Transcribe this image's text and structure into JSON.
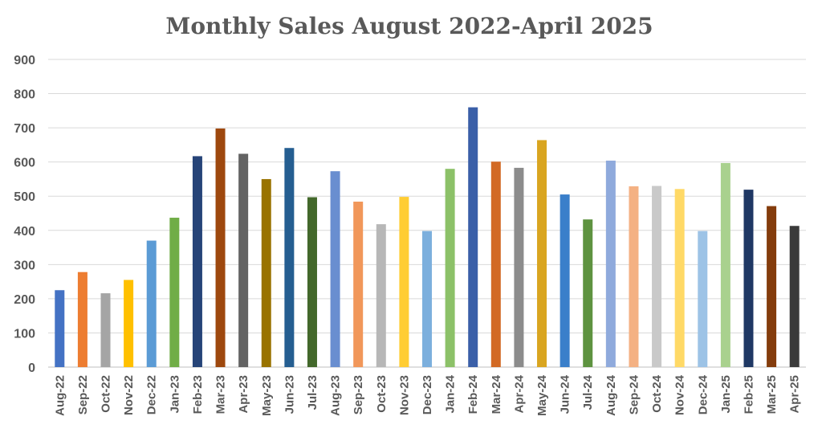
{
  "chart_data": {
    "type": "bar",
    "title": "Monthly Sales August 2022-April 2025",
    "xlabel": "",
    "ylabel": "",
    "ylim": [
      0,
      900
    ],
    "yticks": [
      0,
      100,
      200,
      300,
      400,
      500,
      600,
      700,
      800,
      900
    ],
    "grid": true,
    "legend": "none",
    "categories": [
      "Aug-22",
      "Sep-22",
      "Oct-22",
      "Nov-22",
      "Dec-22",
      "Jan-23",
      "Feb-23",
      "Mar-23",
      "Apr-23",
      "May-23",
      "Jun-23",
      "Jul-23",
      "Aug-23",
      "Sep-23",
      "Oct-23",
      "Nov-23",
      "Dec-23",
      "Jan-24",
      "Feb-24",
      "Mar-24",
      "Apr-24",
      "May-24",
      "Jun-24",
      "Jul-24",
      "Aug-24",
      "Sep-24",
      "Oct-24",
      "Nov-24",
      "Dec-24",
      "Jan-25",
      "Feb-25",
      "Mar-25",
      "Apr-25"
    ],
    "values": [
      225,
      278,
      216,
      255,
      370,
      437,
      617,
      698,
      624,
      550,
      641,
      497,
      573,
      484,
      418,
      498,
      398,
      580,
      760,
      601,
      583,
      664,
      505,
      432,
      604,
      529,
      530,
      521,
      398,
      597,
      519,
      471,
      413
    ],
    "colors": [
      "#4472c4",
      "#ed7d31",
      "#a5a5a5",
      "#ffc000",
      "#5b9bd5",
      "#70ad47",
      "#264478",
      "#9e480e",
      "#636363",
      "#997300",
      "#255e91",
      "#43682b",
      "#698ed0",
      "#f1975a",
      "#b7b7b7",
      "#ffcd33",
      "#7cafdd",
      "#8cc168",
      "#3a5fa8",
      "#d26a25",
      "#8c8c8c",
      "#d9a520",
      "#3a7fca",
      "#5e9340",
      "#8faadc",
      "#f4b183",
      "#c9c9c9",
      "#ffd966",
      "#9dc3e6",
      "#a9d18e",
      "#1f3864",
      "#843c0c",
      "#3a3a3a"
    ]
  }
}
